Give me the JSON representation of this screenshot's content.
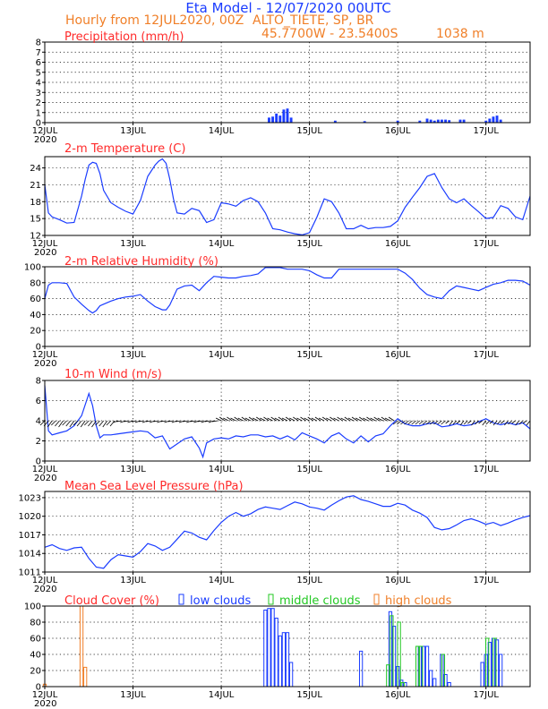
{
  "header": {
    "title": "Eta Model - 12/07/2020 00UTC",
    "subtitle_left": "Hourly from 12JUL2020, 00Z",
    "station": "ALTO_TIETE, SP, BR",
    "coordinates": "45.7700W - 23.5400S",
    "elevation": "1038  m"
  },
  "x_axis": {
    "tick_labels": [
      "12JUL",
      "13JUL",
      "14JUL",
      "15JUL",
      "16JUL",
      "17JUL"
    ],
    "year_label": "2020",
    "range_hours": [
      0,
      132
    ]
  },
  "colors": {
    "series": "#1a3cff",
    "panel_title": "#ff2a2a",
    "subtitle": "#f07f28",
    "low_clouds": "#1a3cff",
    "middle_clouds": "#23c823",
    "high_clouds": "#f07f28"
  },
  "chart_data": [
    {
      "id": "precip",
      "type": "bar",
      "title": "Precipitation (mm/h)",
      "ylim": [
        0,
        8
      ],
      "yticks": [
        0,
        1,
        2,
        3,
        4,
        5,
        6,
        7,
        8
      ],
      "grid": true,
      "bars": [
        [
          61,
          0.5
        ],
        [
          62,
          0.6
        ],
        [
          63,
          0.9
        ],
        [
          64,
          0.7
        ],
        [
          65,
          1.3
        ],
        [
          66,
          1.4
        ],
        [
          67,
          0.5
        ],
        [
          79,
          0.2
        ],
        [
          87,
          0.15
        ],
        [
          96,
          0.2
        ],
        [
          102,
          0.2
        ],
        [
          104,
          0.4
        ],
        [
          105,
          0.3
        ],
        [
          106,
          0.2
        ],
        [
          107,
          0.3
        ],
        [
          108,
          0.3
        ],
        [
          109,
          0.3
        ],
        [
          110,
          0.25
        ],
        [
          113,
          0.3
        ],
        [
          114,
          0.3
        ],
        [
          120,
          0.2
        ],
        [
          121,
          0.4
        ],
        [
          122,
          0.6
        ],
        [
          123,
          0.7
        ],
        [
          124,
          0.3
        ]
      ]
    },
    {
      "id": "temperature",
      "type": "line",
      "title": "2-m Temperature (C)",
      "ylim": [
        12,
        26
      ],
      "yticks": [
        12,
        15,
        18,
        21,
        24
      ],
      "grid": true,
      "x": [
        0,
        1,
        2,
        4,
        6,
        8,
        10,
        11,
        12,
        13,
        14,
        15,
        16,
        18,
        20,
        22,
        24,
        26,
        28,
        30,
        31,
        32,
        33,
        34,
        35,
        36,
        38,
        40,
        42,
        44,
        46,
        48,
        50,
        52,
        54,
        56,
        58,
        60,
        62,
        64,
        66,
        68,
        70,
        72,
        74,
        76,
        78,
        80,
        82,
        84,
        86,
        88,
        90,
        92,
        94,
        96,
        98,
        100,
        102,
        104,
        106,
        108,
        110,
        112,
        114,
        116,
        118,
        120,
        122,
        124,
        126,
        128,
        130,
        132
      ],
      "y": [
        21,
        16,
        15.3,
        14.8,
        14.2,
        14.3,
        19,
        22,
        24.5,
        25,
        24.8,
        23,
        20,
        17.8,
        17,
        16.3,
        15.8,
        18.2,
        22.5,
        24.5,
        25.2,
        25.6,
        24.8,
        22,
        18.5,
        16,
        15.8,
        16.8,
        16.4,
        14.3,
        14.8,
        17.8,
        17.6,
        17.2,
        18.2,
        18.7,
        18,
        16,
        13.2,
        13,
        12.6,
        12.3,
        12.1,
        12.5,
        15.2,
        18.5,
        18,
        16,
        13.2,
        13.2,
        13.8,
        13.2,
        13.4,
        13.4,
        13.6,
        14.6,
        17,
        18.8,
        20.5,
        22.5,
        23,
        20.5,
        18.5,
        17.8,
        18.5,
        17.3,
        16.2,
        15,
        15.2,
        17.3,
        16.8,
        15.3,
        14.8,
        19
      ]
    },
    {
      "id": "humidity",
      "type": "line",
      "title": "2-m Relative Humidity (%)",
      "ylim": [
        0,
        100
      ],
      "yticks": [
        0,
        20,
        40,
        60,
        80,
        100
      ],
      "grid": true,
      "x": [
        0,
        1,
        2,
        4,
        6,
        8,
        10,
        12,
        13,
        14,
        15,
        16,
        18,
        20,
        22,
        24,
        26,
        28,
        30,
        32,
        33,
        34,
        36,
        38,
        40,
        42,
        44,
        46,
        48,
        50,
        52,
        54,
        56,
        58,
        60,
        62,
        64,
        66,
        68,
        70,
        72,
        74,
        76,
        78,
        80,
        82,
        84,
        86,
        88,
        90,
        92,
        94,
        96,
        98,
        100,
        102,
        104,
        106,
        108,
        110,
        112,
        114,
        116,
        118,
        120,
        122,
        124,
        126,
        128,
        130,
        132
      ],
      "y": [
        60,
        77,
        80,
        80,
        79,
        62,
        53,
        45,
        42,
        45,
        51,
        53,
        57,
        60,
        62,
        63,
        65,
        57,
        50,
        46,
        46,
        52,
        72,
        76,
        77,
        70,
        80,
        88,
        87,
        86,
        86,
        88,
        89,
        91,
        99,
        99,
        99,
        97,
        97,
        97,
        95,
        90,
        86,
        86,
        97,
        97,
        97,
        97,
        97,
        97,
        97,
        97,
        97,
        92,
        84,
        73,
        65,
        62,
        60,
        70,
        76,
        74,
        72,
        70,
        74,
        78,
        80,
        83,
        83,
        82,
        77
      ]
    },
    {
      "id": "wind",
      "type": "line",
      "title": "10-m Wind (m/s)",
      "ylim": [
        0,
        8
      ],
      "yticks": [
        0,
        2,
        4,
        6,
        8
      ],
      "grid": true,
      "x": [
        0,
        1,
        2,
        4,
        6,
        8,
        10,
        12,
        13,
        14,
        15,
        16,
        18,
        20,
        22,
        24,
        26,
        28,
        30,
        32,
        34,
        36,
        38,
        40,
        42,
        43,
        44,
        46,
        48,
        50,
        52,
        54,
        56,
        58,
        60,
        62,
        64,
        66,
        68,
        70,
        72,
        74,
        76,
        78,
        80,
        82,
        84,
        86,
        88,
        90,
        92,
        94,
        96,
        98,
        100,
        102,
        104,
        106,
        108,
        110,
        112,
        114,
        116,
        118,
        120,
        122,
        124,
        126,
        128,
        130,
        132
      ],
      "y": [
        7.5,
        3,
        2.6,
        2.8,
        3,
        3.5,
        4.5,
        6.7,
        5.5,
        3.5,
        2.3,
        2.6,
        2.6,
        2.7,
        2.8,
        2.9,
        3,
        2.9,
        2.3,
        2.5,
        1.2,
        1.7,
        2.2,
        2.4,
        1.3,
        0.4,
        1.8,
        2.2,
        2.3,
        2.2,
        2.5,
        2.4,
        2.6,
        2.6,
        2.4,
        2.5,
        2.2,
        2.5,
        2.1,
        2.8,
        2.5,
        2.2,
        1.8,
        2.5,
        2.8,
        2.2,
        1.8,
        2.5,
        1.9,
        2.5,
        2.7,
        3.5,
        4.2,
        3.7,
        3.5,
        3.5,
        3.7,
        3.8,
        3.4,
        3.5,
        3.7,
        3.5,
        3.6,
        3.9,
        4.2,
        3.8,
        3.6,
        3.8,
        3.6,
        3.8,
        3.2
      ],
      "vectors": "direction arrows drawn along the 4 m/s line, one per model hour"
    },
    {
      "id": "pressure",
      "type": "line",
      "title": "Mean Sea Level Pressure (hPa)",
      "ylim": [
        1011,
        1024
      ],
      "yticks": [
        1011,
        1014,
        1017,
        1020,
        1023
      ],
      "grid": true,
      "x": [
        0,
        2,
        4,
        6,
        8,
        10,
        12,
        14,
        16,
        18,
        20,
        22,
        24,
        26,
        28,
        30,
        32,
        34,
        36,
        38,
        40,
        42,
        44,
        46,
        48,
        50,
        52,
        54,
        56,
        58,
        60,
        62,
        64,
        66,
        68,
        70,
        72,
        74,
        76,
        78,
        80,
        82,
        84,
        86,
        88,
        90,
        92,
        94,
        96,
        98,
        100,
        102,
        104,
        106,
        108,
        110,
        112,
        114,
        116,
        118,
        120,
        122,
        124,
        126,
        128,
        130,
        132
      ],
      "y": [
        1015,
        1015.4,
        1014.8,
        1014.5,
        1014.9,
        1015,
        1013.2,
        1011.8,
        1011.6,
        1013,
        1013.8,
        1013.6,
        1013.4,
        1014.3,
        1015.6,
        1015.2,
        1014.5,
        1015,
        1016.3,
        1017.6,
        1017.3,
        1016.6,
        1016.2,
        1017.7,
        1019,
        1020,
        1020.6,
        1020,
        1020.4,
        1021.1,
        1021.5,
        1021.3,
        1021.1,
        1021.7,
        1022.3,
        1022,
        1021.5,
        1021.3,
        1021,
        1021.8,
        1022.5,
        1023.1,
        1023.3,
        1022.7,
        1022.4,
        1022,
        1021.6,
        1021.6,
        1022.1,
        1021.8,
        1021,
        1020.5,
        1019.8,
        1018.2,
        1017.8,
        1018,
        1018.6,
        1019.3,
        1019.6,
        1019.2,
        1018.7,
        1019,
        1018.5,
        1018.9,
        1019.4,
        1019.8,
        1020.1
      ]
    },
    {
      "id": "clouds",
      "type": "bar",
      "title": "Cloud Cover (%)",
      "ylim": [
        0,
        100
      ],
      "yticks": [
        0,
        20,
        40,
        60,
        80,
        100
      ],
      "grid": true,
      "series": [
        {
          "name": "low clouds",
          "values": [
            [
              60,
              95
            ],
            [
              61,
              97
            ],
            [
              62,
              97
            ],
            [
              63,
              85
            ],
            [
              64,
              63
            ],
            [
              65,
              67
            ],
            [
              66,
              67
            ],
            [
              67,
              30
            ],
            [
              86,
              44
            ],
            [
              94,
              93
            ],
            [
              95,
              75
            ],
            [
              96,
              25
            ],
            [
              97,
              8
            ],
            [
              98,
              5
            ],
            [
              102,
              50
            ],
            [
              103,
              50
            ],
            [
              104,
              50
            ],
            [
              105,
              20
            ],
            [
              106,
              10
            ],
            [
              108,
              40
            ],
            [
              109,
              15
            ],
            [
              110,
              5
            ],
            [
              119,
              30
            ],
            [
              120,
              40
            ],
            [
              121,
              55
            ],
            [
              122,
              60
            ],
            [
              123,
              58
            ],
            [
              124,
              40
            ]
          ]
        },
        {
          "name": "middle clouds",
          "values": [
            [
              93,
              27
            ],
            [
              94,
              88
            ],
            [
              96,
              80
            ],
            [
              97,
              5
            ],
            [
              101,
              50
            ],
            [
              102,
              50
            ],
            [
              108,
              40
            ],
            [
              120,
              60
            ],
            [
              122,
              60
            ]
          ]
        },
        {
          "name": "high clouds",
          "values": [
            [
              0,
              3
            ],
            [
              10,
              100
            ],
            [
              11,
              24
            ]
          ]
        }
      ]
    }
  ]
}
